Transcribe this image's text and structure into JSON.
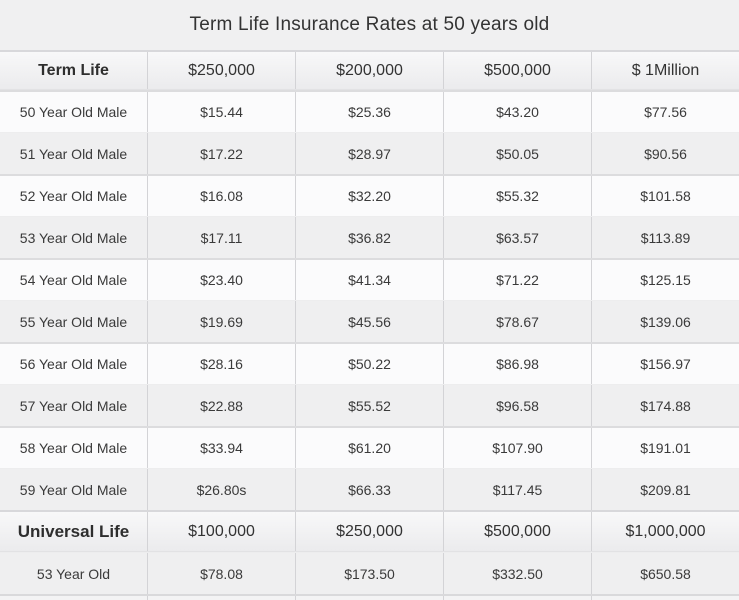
{
  "chart_data": {
    "type": "table",
    "title": "Term Life Insurance Rates at 50 years old",
    "sections": [
      {
        "header_label": "Term Life",
        "columns": [
          "$250,000",
          "$200,000",
          "$500,000",
          "$ 1Million"
        ],
        "rows": [
          {
            "label": "50 Year Old Male",
            "values": [
              "$15.44",
              "$25.36",
              "$43.20",
              "$77.56"
            ]
          },
          {
            "label": "51 Year Old Male",
            "values": [
              "$17.22",
              "$28.97",
              "$50.05",
              "$90.56"
            ]
          },
          {
            "label": "52 Year Old Male",
            "values": [
              "$16.08",
              "$32.20",
              "$55.32",
              "$101.58"
            ]
          },
          {
            "label": "53 Year Old Male",
            "values": [
              "$17.11",
              "$36.82",
              "$63.57",
              "$113.89"
            ]
          },
          {
            "label": "54 Year Old Male",
            "values": [
              "$23.40",
              "$41.34",
              "$71.22",
              "$125.15"
            ]
          },
          {
            "label": "55 Year Old Male",
            "values": [
              "$19.69",
              "$45.56",
              "$78.67",
              "$139.06"
            ]
          },
          {
            "label": "56 Year Old Male",
            "values": [
              "$28.16",
              "$50.22",
              "$86.98",
              "$156.97"
            ]
          },
          {
            "label": "57 Year Old Male",
            "values": [
              "$22.88",
              "$55.52",
              "$96.58",
              "$174.88"
            ]
          },
          {
            "label": "58 Year Old Male",
            "values": [
              "$33.94",
              "$61.20",
              "$107.90",
              "$191.01"
            ]
          },
          {
            "label": "59 Year Old Male",
            "values": [
              "$26.80s",
              "$66.33",
              "$117.45",
              "$209.81"
            ]
          }
        ]
      },
      {
        "header_label": "Universal Life",
        "columns": [
          "$100,000",
          "$250,000",
          "$500,000",
          "$1,000,000"
        ],
        "rows": [
          {
            "label": "53 Year Old",
            "values": [
              "$78.08",
              "$173.50",
              "$332.50",
              "$650.58"
            ]
          }
        ]
      }
    ]
  },
  "colors": {
    "page_background": "#f0f0f1",
    "row_white": "#fbfbfc",
    "row_gray": "#efeff0",
    "divider": "#d3d3d6",
    "text": "#333333"
  }
}
